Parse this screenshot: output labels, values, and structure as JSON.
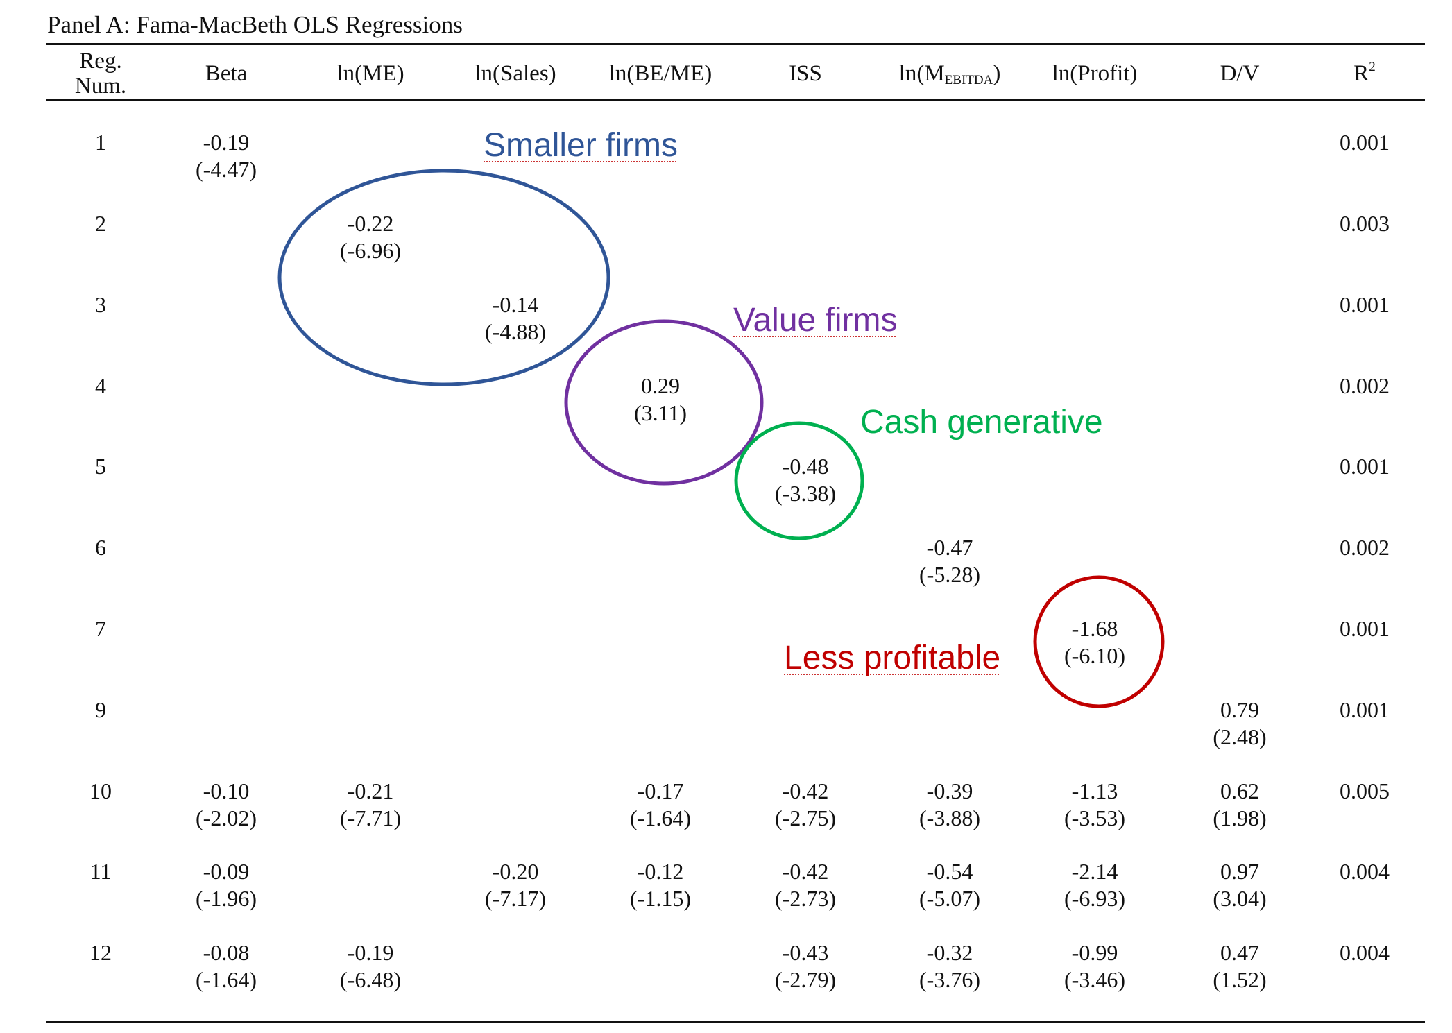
{
  "panel_title": "Panel A: Fama-MacBeth OLS Regressions",
  "headers": {
    "reg_num_line1": "Reg.",
    "reg_num_line2": "Num.",
    "beta": "Beta",
    "ln_me": "ln(ME)",
    "ln_sales": "ln(Sales)",
    "ln_beme": "ln(BE/ME)",
    "iss": "ISS",
    "ln_m_prefix": "ln(M",
    "ln_m_sub": "EBITDA",
    "ln_m_suffix": ")",
    "ln_profit": "ln(Profit)",
    "dv": "D/V",
    "r2_base": "R",
    "r2_sup": "2"
  },
  "rows": [
    {
      "num": "1",
      "beta": [
        "-0.19",
        "(-4.47)"
      ],
      "r2": "0.001"
    },
    {
      "num": "2",
      "ln_me": [
        "-0.22",
        "(-6.96)"
      ],
      "r2": "0.003"
    },
    {
      "num": "3",
      "ln_sales": [
        "-0.14",
        "(-4.88)"
      ],
      "r2": "0.001"
    },
    {
      "num": "4",
      "ln_beme": [
        "0.29",
        "(3.11)"
      ],
      "r2": "0.002"
    },
    {
      "num": "5",
      "iss": [
        "-0.48",
        "(-3.38)"
      ],
      "r2": "0.001"
    },
    {
      "num": "6",
      "ln_m": [
        "-0.47",
        "(-5.28)"
      ],
      "r2": "0.002"
    },
    {
      "num": "7",
      "ln_profit": [
        "-1.68",
        "(-6.10)"
      ],
      "r2": "0.001"
    },
    {
      "num": "9",
      "dv": [
        "0.79",
        "(2.48)"
      ],
      "r2": "0.001"
    },
    {
      "num": "10",
      "beta": [
        "-0.10",
        "(-2.02)"
      ],
      "ln_me": [
        "-0.21",
        "(-7.71)"
      ],
      "ln_beme": [
        "-0.17",
        "(-1.64)"
      ],
      "iss": [
        "-0.42",
        "(-2.75)"
      ],
      "ln_m": [
        "-0.39",
        "(-3.88)"
      ],
      "ln_profit": [
        "-1.13",
        "(-3.53)"
      ],
      "dv": [
        "0.62",
        "(1.98)"
      ],
      "r2": "0.005"
    },
    {
      "num": "11",
      "beta": [
        "-0.09",
        "(-1.96)"
      ],
      "ln_sales": [
        "-0.20",
        "(-7.17)"
      ],
      "ln_beme": [
        "-0.12",
        "(-1.15)"
      ],
      "iss": [
        "-0.42",
        "(-2.73)"
      ],
      "ln_m": [
        "-0.54",
        "(-5.07)"
      ],
      "ln_profit": [
        "-2.14",
        "(-6.93)"
      ],
      "dv": [
        "0.97",
        "(3.04)"
      ],
      "r2": "0.004"
    },
    {
      "num": "12",
      "beta": [
        "-0.08",
        "(-1.64)"
      ],
      "ln_me": [
        "-0.19",
        "(-6.48)"
      ],
      "iss": [
        "-0.43",
        "(-2.79)"
      ],
      "ln_m": [
        "-0.32",
        "(-3.76)"
      ],
      "ln_profit": [
        "-0.99",
        "(-3.46)"
      ],
      "dv": [
        "0.47",
        "(1.52)"
      ],
      "r2": "0.004"
    }
  ],
  "annotations": {
    "smaller_firms": {
      "text": "Smaller firms",
      "color": "#2f5597"
    },
    "value_firms": {
      "text": "Value firms",
      "color": "#7030a0"
    },
    "cash_generative": {
      "text": "Cash generative",
      "color": "#00b050"
    },
    "less_profitable": {
      "text": "Less profitable",
      "color": "#c00000"
    }
  }
}
